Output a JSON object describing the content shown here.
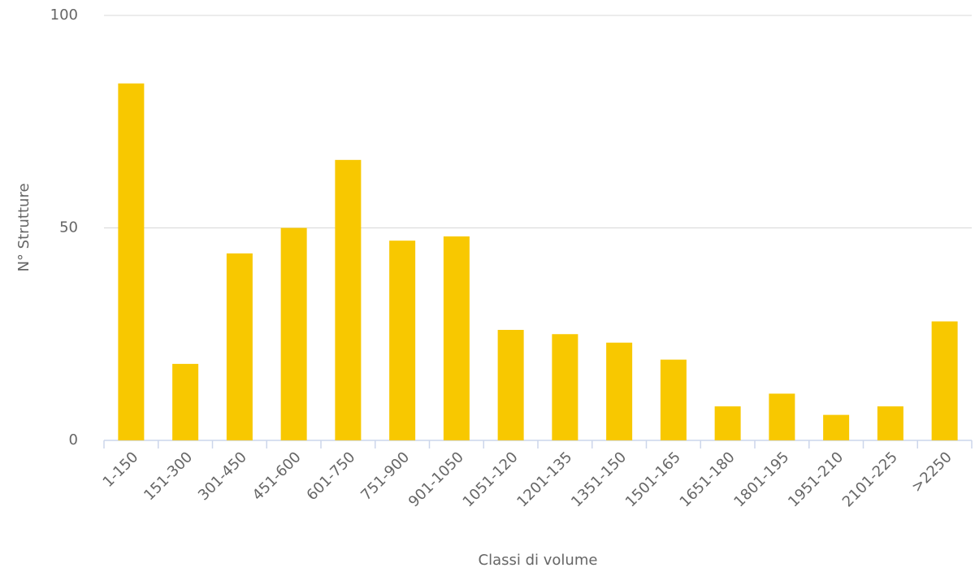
{
  "chart_data": {
    "type": "bar",
    "x_label": "Classi di volume",
    "y_label": "N° Strutture",
    "categories": [
      "1-150",
      "151-300",
      "301-450",
      "451-600",
      "601-750",
      "751-900",
      "901-1050",
      "1051-120",
      "1201-135",
      "1351-150",
      "1501-165",
      "1651-180",
      "1801-195",
      "1951-210",
      "2101-225",
      ">2250"
    ],
    "values": [
      84,
      18,
      44,
      50,
      66,
      47,
      48,
      26,
      25,
      23,
      19,
      8,
      11,
      6,
      8,
      28
    ],
    "color": "#f8c800",
    "ylim": [
      0,
      100
    ],
    "yticks": [
      0,
      50,
      100
    ],
    "grid": true
  }
}
